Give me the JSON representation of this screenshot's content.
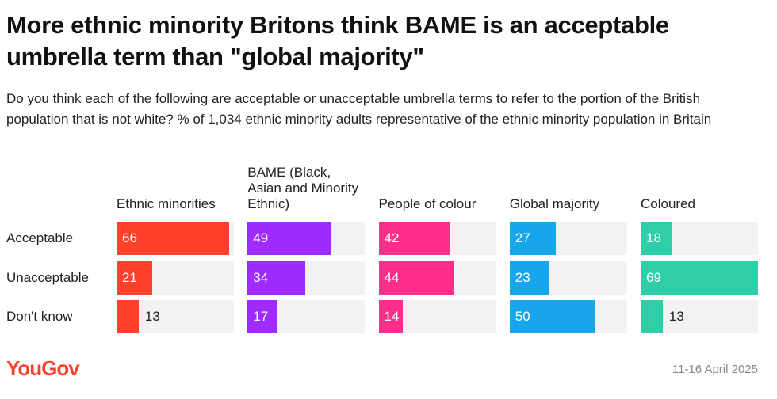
{
  "chart_data": {
    "type": "bar",
    "title": "More ethnic minority Britons think BAME is an acceptable umbrella term than \"global majority\"",
    "subtitle": "Do you think each of the following are acceptable or unacceptable umbrella terms to refer to the portion of the British population that is not white? % of 1,034 ethnic minority adults representative of the ethnic minority population in Britain",
    "categories": [
      "Acceptable",
      "Unacceptable",
      "Don't know"
    ],
    "xlim": [
      0,
      69
    ],
    "series": [
      {
        "name": "Ethnic minorities",
        "color": "#ff412c",
        "values": [
          66,
          21,
          13
        ]
      },
      {
        "name": "BAME (Black, Asian and Minority Ethnic)",
        "color": "#9f2bff",
        "values": [
          49,
          34,
          17
        ]
      },
      {
        "name": "People of colour",
        "color": "#ff2e8a",
        "values": [
          42,
          44,
          14
        ]
      },
      {
        "name": "Global majority",
        "color": "#17a6ec",
        "values": [
          27,
          23,
          50
        ]
      },
      {
        "name": "Coloured",
        "color": "#2ecfa8",
        "values": [
          18,
          69,
          13
        ]
      }
    ],
    "source": "YouGov",
    "date": "11-16 April 2025"
  }
}
